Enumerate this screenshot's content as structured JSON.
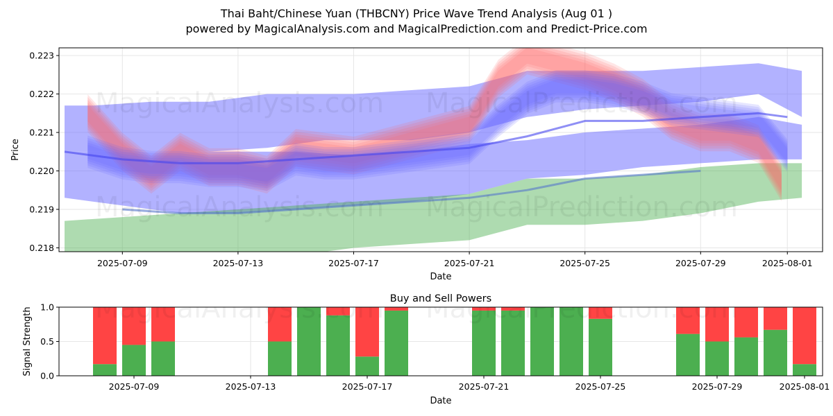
{
  "header": {
    "title_line1": "Thai Baht/Chinese Yuan (THBCNY) Price Wave Trend Analysis (Aug 01 )",
    "title_line2": "powered by MagicalAnalysis.com and MagicalPrediction.com and Predict-Price.com"
  },
  "watermarks": [
    "MagicalAnalysis.com",
    "MagicalPrediction.com"
  ],
  "colors": {
    "blue_band": "#6666ff",
    "red_band": "#ff6666",
    "green_band": "#4caf50",
    "buy_bar": "#4caf50",
    "sell_bar": "#ff4444",
    "grid": "#e6e6e6"
  },
  "chart_data": [
    {
      "type": "area",
      "title": "Thai Baht/Chinese Yuan (THBCNY) Price Wave Trend Analysis (Aug 01 )",
      "xlabel": "Date",
      "ylabel": "Price",
      "ylim": [
        0.2179,
        0.2232
      ],
      "x_tick_labels": [
        "2025-07-09",
        "2025-07-13",
        "2025-07-17",
        "2025-07-21",
        "2025-07-25",
        "2025-07-29",
        "2025-08-01"
      ],
      "y_tick_labels": [
        "0.218",
        "0.219",
        "0.220",
        "0.221",
        "0.222",
        "0.223"
      ],
      "x_start_date": "2025-07-07",
      "series": [
        {
          "name": "blue-upper-band",
          "color": "blue",
          "x": [
            0,
            1,
            3,
            5,
            7,
            8,
            9,
            10,
            12,
            14,
            16,
            18,
            20,
            22,
            24,
            25.5
          ],
          "lower": [
            0.2205,
            0.2205,
            0.2205,
            0.2205,
            0.2206,
            0.2207,
            0.2208,
            0.2208,
            0.2208,
            0.221,
            0.2214,
            0.2216,
            0.2217,
            0.2218,
            0.222,
            0.2214
          ],
          "upper": [
            0.2217,
            0.2217,
            0.2218,
            0.2218,
            0.222,
            0.222,
            0.222,
            0.222,
            0.2221,
            0.2222,
            0.2226,
            0.2226,
            0.2226,
            0.2227,
            0.2228,
            0.2226
          ]
        },
        {
          "name": "blue-lower-band",
          "color": "blue",
          "x": [
            0,
            2,
            4,
            6,
            8,
            10,
            12,
            14,
            16,
            18,
            20,
            22,
            24,
            25.5
          ],
          "lower": [
            0.2193,
            0.2191,
            0.2189,
            0.2189,
            0.219,
            0.2191,
            0.2192,
            0.2194,
            0.2198,
            0.2199,
            0.2201,
            0.2202,
            0.2203,
            0.2203
          ],
          "upper": [
            0.2205,
            0.2205,
            0.2205,
            0.2205,
            0.2205,
            0.2204,
            0.2205,
            0.2207,
            0.2208,
            0.221,
            0.2211,
            0.2212,
            0.2214,
            0.2212
          ]
        },
        {
          "name": "green-band",
          "color": "green",
          "x": [
            0,
            2,
            4,
            6,
            8,
            10,
            12,
            14,
            16,
            18,
            20,
            22,
            24,
            25.5
          ],
          "lower": [
            0.2178,
            0.2178,
            0.2178,
            0.2178,
            0.2178,
            0.218,
            0.2181,
            0.2182,
            0.2186,
            0.2186,
            0.2187,
            0.2189,
            0.2192,
            0.2193
          ],
          "upper": [
            0.2187,
            0.2188,
            0.2189,
            0.219,
            0.2191,
            0.2192,
            0.2193,
            0.2194,
            0.2198,
            0.2198,
            0.2199,
            0.2201,
            0.2202,
            0.2202
          ]
        },
        {
          "name": "red-wave",
          "color": "red",
          "x": [
            0.8,
            2,
            3,
            4,
            5,
            6,
            7,
            8,
            9,
            10,
            11,
            12,
            13,
            14,
            15,
            16,
            17,
            18,
            19,
            20,
            21,
            22,
            23,
            24,
            24.8
          ],
          "y": [
            0.2215,
            0.2205,
            0.2199,
            0.2205,
            0.2201,
            0.2201,
            0.2199,
            0.2206,
            0.2205,
            0.2204,
            0.2206,
            0.2208,
            0.221,
            0.2212,
            0.2224,
            0.223,
            0.2228,
            0.2226,
            0.2223,
            0.2219,
            0.2213,
            0.221,
            0.221,
            0.2207,
            0.2197
          ],
          "spread": 0.0007
        },
        {
          "name": "blue-wave",
          "color": "blue",
          "x": [
            0.8,
            2,
            3,
            4,
            5,
            6,
            7,
            8,
            9,
            10,
            11,
            12,
            13,
            14,
            15,
            16,
            17,
            18,
            19,
            20,
            21,
            22,
            23,
            24,
            25
          ],
          "y": [
            0.2205,
            0.2202,
            0.2201,
            0.2201,
            0.22,
            0.22,
            0.2199,
            0.2203,
            0.2202,
            0.2202,
            0.2203,
            0.2204,
            0.2205,
            0.2206,
            0.2213,
            0.2219,
            0.2222,
            0.2222,
            0.2221,
            0.2219,
            0.2216,
            0.2215,
            0.2214,
            0.2213,
            0.2204
          ],
          "spread": 0.0006
        },
        {
          "name": "dark-blue-trend-line",
          "color": "dark-blue",
          "x": [
            0,
            2,
            4,
            6,
            8,
            10,
            12,
            14,
            16,
            18,
            20,
            22,
            24,
            25
          ],
          "y": [
            0.2205,
            0.2203,
            0.2202,
            0.2202,
            0.2203,
            0.2204,
            0.2205,
            0.2206,
            0.2209,
            0.2213,
            0.2213,
            0.2214,
            0.2215,
            0.2214
          ]
        },
        {
          "name": "steel-blue-line",
          "color": "steel-blue",
          "x": [
            2,
            4,
            6,
            8,
            10,
            12,
            14,
            16,
            18,
            20,
            22
          ],
          "y": [
            0.219,
            0.2189,
            0.2189,
            0.219,
            0.2191,
            0.2192,
            0.2193,
            0.2195,
            0.2198,
            0.2199,
            0.22
          ]
        }
      ]
    },
    {
      "type": "bar",
      "title": "Buy and Sell Powers",
      "xlabel": "Date",
      "ylabel": "Signal Strength",
      "ylim": [
        0,
        1
      ],
      "y_tick_labels": [
        "0.0",
        "0.5",
        "1.0"
      ],
      "x_tick_labels": [
        "2025-07-09",
        "2025-07-13",
        "2025-07-17",
        "2025-07-21",
        "2025-07-25",
        "2025-07-29",
        "2025-08-01"
      ],
      "categories": [
        "2025-07-08",
        "2025-07-09",
        "2025-07-10",
        "2025-07-14",
        "2025-07-15",
        "2025-07-16",
        "2025-07-17",
        "2025-07-18",
        "2025-07-21",
        "2025-07-22",
        "2025-07-23",
        "2025-07-24",
        "2025-07-25",
        "2025-07-28",
        "2025-07-29",
        "2025-07-30",
        "2025-07-31",
        "2025-08-01"
      ],
      "series": [
        {
          "name": "Buy",
          "values": [
            0.17,
            0.45,
            0.5,
            0.5,
            1.0,
            0.88,
            0.28,
            0.95,
            0.95,
            0.95,
            1.0,
            1.0,
            0.83,
            0.61,
            0.5,
            0.56,
            0.67,
            0.17
          ]
        },
        {
          "name": "Sell",
          "values": [
            0.83,
            0.55,
            0.5,
            0.5,
            0.0,
            0.12,
            0.72,
            0.05,
            0.05,
            0.05,
            0.0,
            0.0,
            0.17,
            0.39,
            0.5,
            0.44,
            0.33,
            0.83
          ]
        }
      ]
    }
  ]
}
